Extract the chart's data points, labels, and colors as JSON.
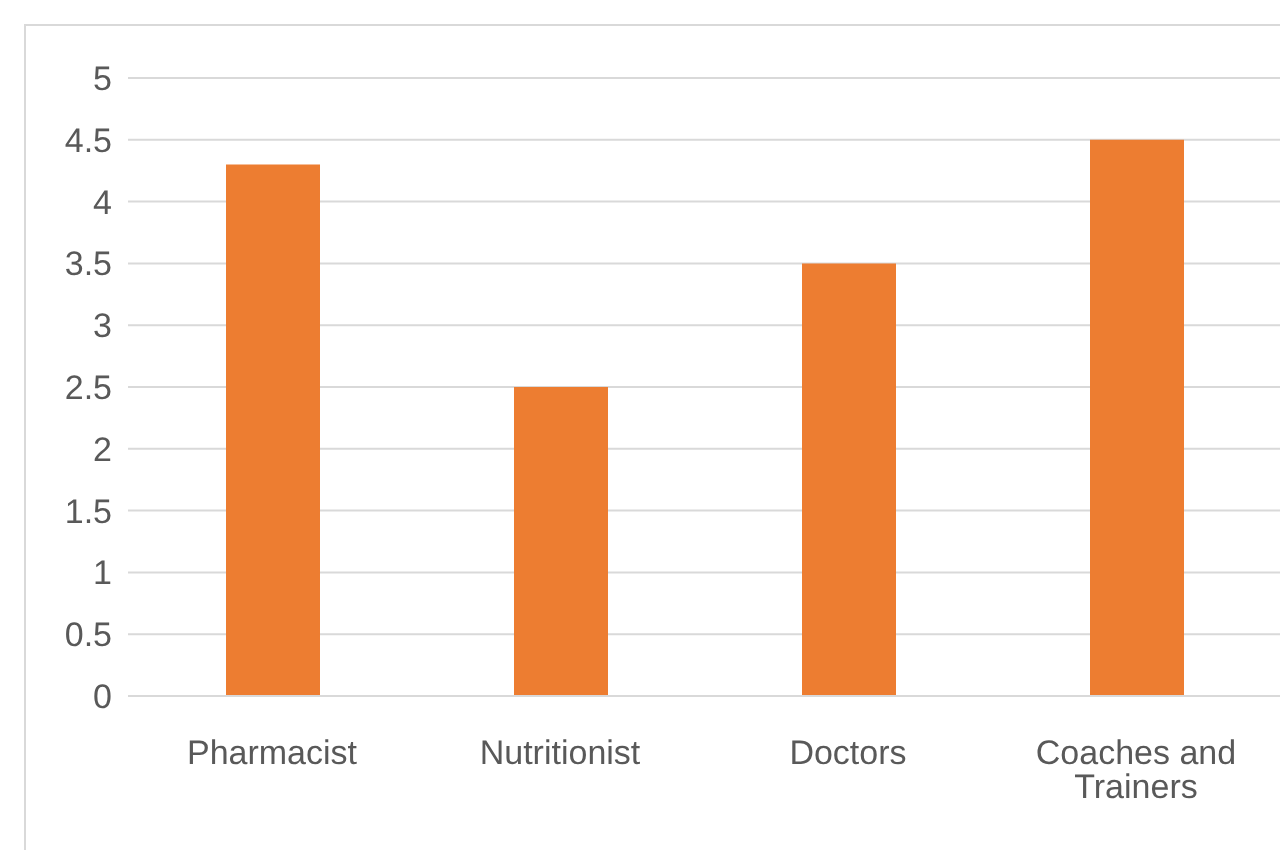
{
  "chart_data": {
    "type": "bar",
    "categories": [
      "Pharmacist",
      "Nutritionist",
      "Doctors",
      "Coaches and Trainers"
    ],
    "values": [
      4.3,
      2.5,
      3.5,
      4.5
    ],
    "color": "#ed7d31",
    "ylim": [
      0,
      5
    ],
    "yticks": [
      0,
      0.5,
      1,
      1.5,
      2,
      2.5,
      3,
      3.5,
      4,
      4.5,
      5
    ],
    "grid": "y"
  }
}
